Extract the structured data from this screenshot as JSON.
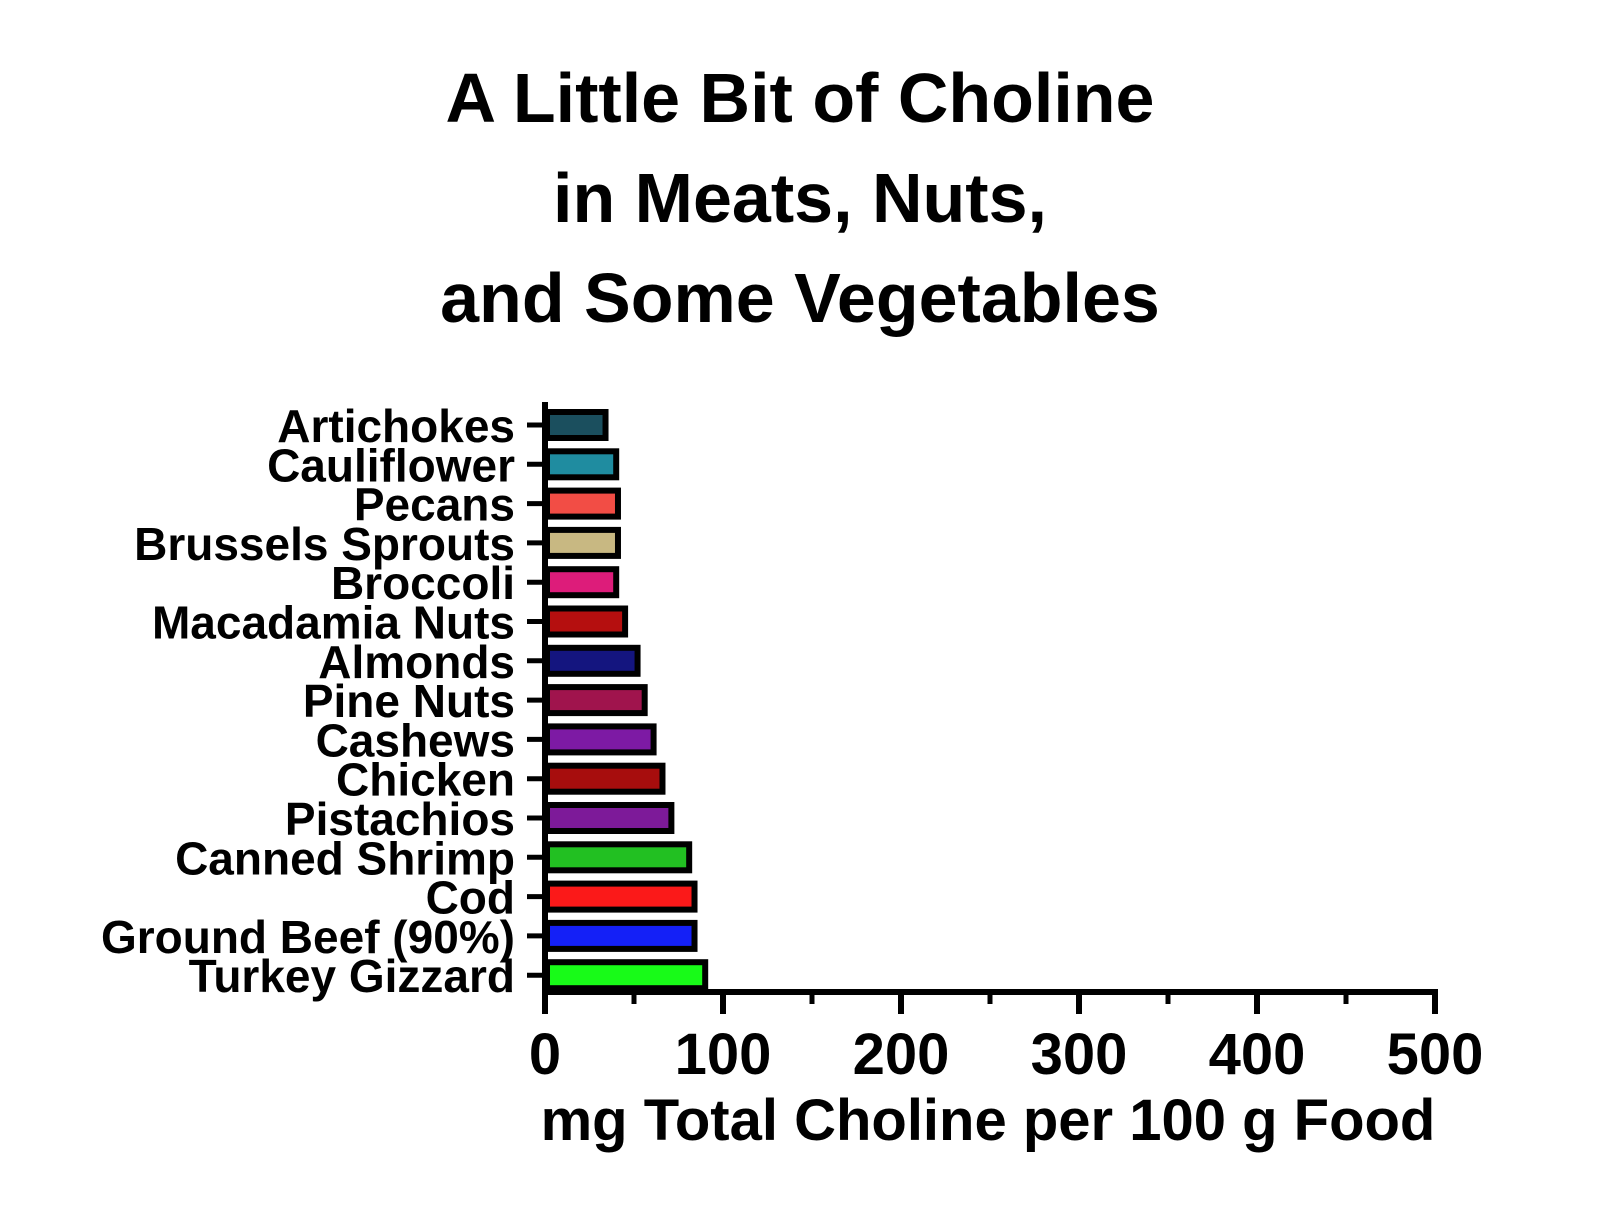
{
  "chart_data": {
    "type": "bar",
    "orientation": "horizontal",
    "title": [
      "A Little Bit of Choline",
      "in Meats, Nuts,",
      "and Some Vegetables"
    ],
    "xlabel": "mg Total Choline per 100 g Food",
    "ylabel": "",
    "xlim": [
      0,
      500
    ],
    "xticks": [
      0,
      100,
      200,
      300,
      400,
      500
    ],
    "xtick_labels": [
      "0",
      "100",
      "200",
      "300",
      "400",
      "500"
    ],
    "grid": false,
    "legend": "none",
    "categories": [
      "Artichokes",
      "Cauliflower",
      "Pecans",
      "Brussels Sprouts",
      "Broccoli",
      "Macadamia Nuts",
      "Almonds",
      "Pine Nuts",
      "Cashews",
      "Chicken",
      "Pistachios",
      "Canned Shrimp",
      "Cod",
      "Ground Beef (90%)",
      "Turkey Gizzard"
    ],
    "values": [
      34,
      40,
      41,
      41,
      40,
      45,
      52,
      56,
      61,
      66,
      71,
      81,
      84,
      84,
      90
    ],
    "colors": [
      "#1b4f5e",
      "#1f8ca0",
      "#f24d45",
      "#c8b882",
      "#dd1c7a",
      "#b50f0f",
      "#14157f",
      "#a0144d",
      "#7d1aa4",
      "#a70d0d",
      "#7d1a99",
      "#22c022",
      "#fb1919",
      "#1420f7",
      "#18fb18"
    ]
  }
}
